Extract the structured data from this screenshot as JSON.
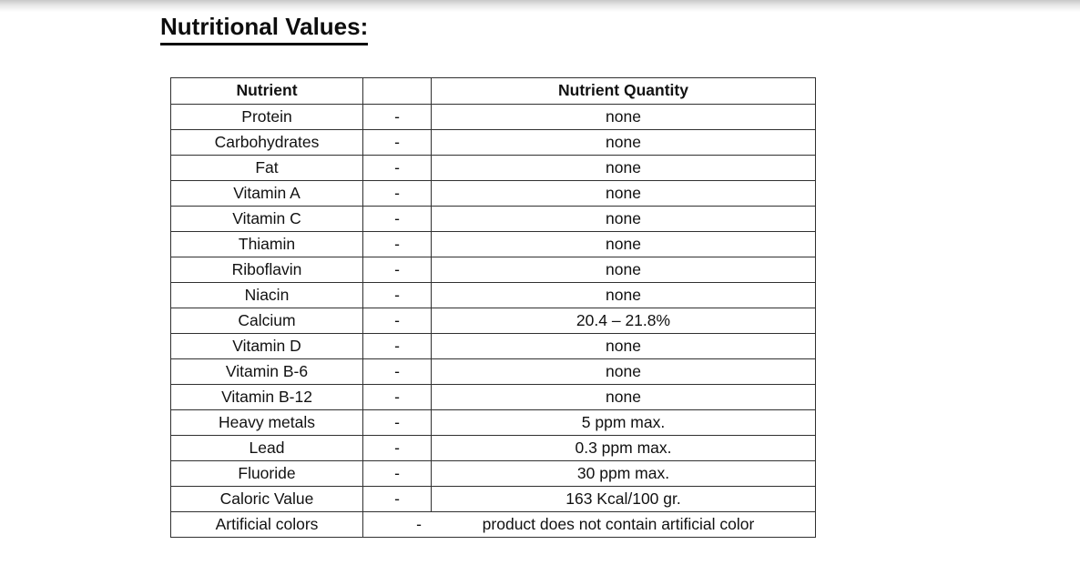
{
  "page": {
    "title": "Nutritional Values:"
  },
  "table": {
    "headers": [
      "Nutrient",
      "",
      "Nutrient Quantity"
    ],
    "separator": "-",
    "rows": [
      {
        "nutrient": "Protein",
        "quantity": "none"
      },
      {
        "nutrient": "Carbohydrates",
        "quantity": "none"
      },
      {
        "nutrient": "Fat",
        "quantity": "none"
      },
      {
        "nutrient": "Vitamin A",
        "quantity": "none"
      },
      {
        "nutrient": "Vitamin C",
        "quantity": "none"
      },
      {
        "nutrient": "Thiamin",
        "quantity": "none"
      },
      {
        "nutrient": "Riboflavin",
        "quantity": "none"
      },
      {
        "nutrient": "Niacin",
        "quantity": "none"
      },
      {
        "nutrient": "Calcium",
        "quantity": "20.4 – 21.8%"
      },
      {
        "nutrient": "Vitamin D",
        "quantity": "none"
      },
      {
        "nutrient": "Vitamin B-6",
        "quantity": "none"
      },
      {
        "nutrient": "Vitamin B-12",
        "quantity": "none"
      },
      {
        "nutrient": "Heavy metals",
        "quantity": "5 ppm max."
      },
      {
        "nutrient": "Lead",
        "quantity": "0.3 ppm max."
      },
      {
        "nutrient": "Fluoride",
        "quantity": "30 ppm max."
      },
      {
        "nutrient": "Caloric Value",
        "quantity": "163 Kcal/100 gr."
      },
      {
        "nutrient": "Artificial colors",
        "quantity": "product does not contain artificial color",
        "merged": true
      }
    ]
  }
}
